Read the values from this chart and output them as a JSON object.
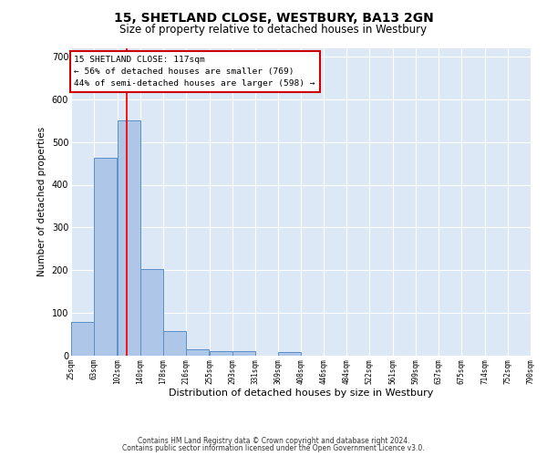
{
  "title": "15, SHETLAND CLOSE, WESTBURY, BA13 2GN",
  "subtitle": "Size of property relative to detached houses in Westbury",
  "xlabel": "Distribution of detached houses by size in Westbury",
  "ylabel": "Number of detached properties",
  "annotation_text": "15 SHETLAND CLOSE: 117sqm\n← 56% of detached houses are smaller (769)\n44% of semi-detached houses are larger (598) →",
  "bin_edges": [
    25,
    63,
    102,
    140,
    178,
    216,
    255,
    293,
    331,
    369,
    408,
    446,
    484,
    522,
    561,
    599,
    637,
    675,
    714,
    752,
    790
  ],
  "bin_counts": [
    78,
    463,
    551,
    203,
    58,
    15,
    10,
    10,
    0,
    8,
    0,
    0,
    0,
    0,
    0,
    0,
    0,
    0,
    0,
    0
  ],
  "bar_color": "#aec6e8",
  "bar_edge_color": "#5b8fc7",
  "red_line_x": 117,
  "box_color": "#ffffff",
  "box_edge_color": "#cc0000",
  "footer1": "Contains HM Land Registry data © Crown copyright and database right 2024.",
  "footer2": "Contains public sector information licensed under the Open Government Licence v3.0.",
  "ylim": [
    0,
    720
  ],
  "yticks": [
    0,
    100,
    200,
    300,
    400,
    500,
    600,
    700
  ],
  "figsize": [
    6.0,
    5.0
  ],
  "dpi": 100,
  "background_color": "#dce8f5",
  "title_fontsize": 10,
  "subtitle_fontsize": 8.5
}
